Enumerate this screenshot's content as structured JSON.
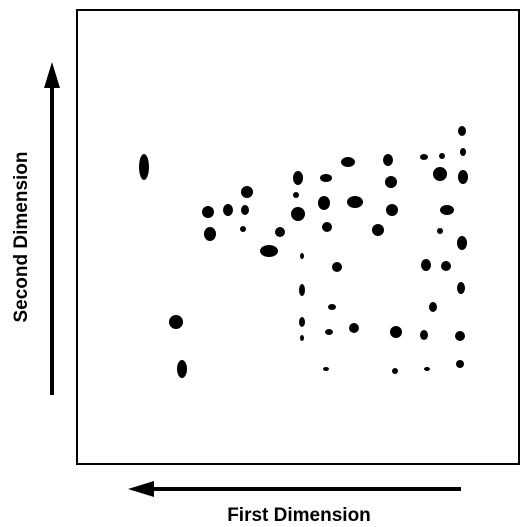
{
  "axes": {
    "y_label": "Second Dimension",
    "x_label": "First Dimension"
  }
}
